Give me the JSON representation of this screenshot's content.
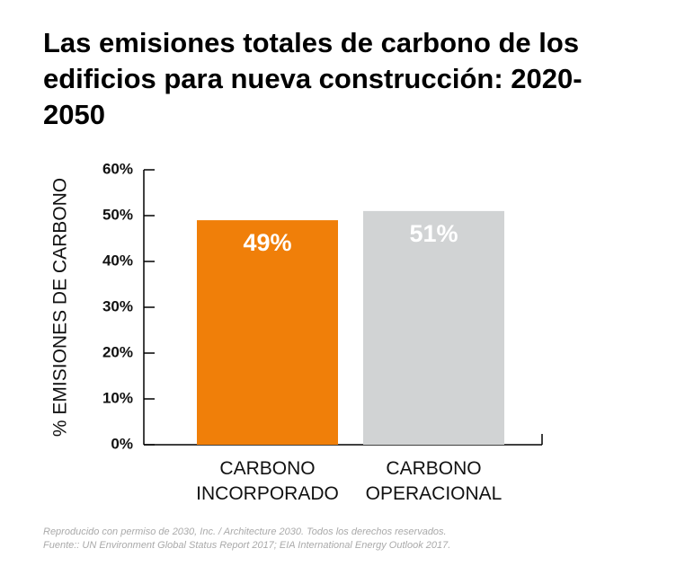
{
  "chart_data": {
    "type": "bar",
    "title": "Las emisiones totales de carbono de los edificios para nueva construcción: 2020-2050",
    "y_label": "% EMISIONES DE CARBONO",
    "categories": [
      "CARBONO INCORPORADO",
      "CARBONO OPERACIONAL"
    ],
    "values": [
      49,
      51
    ],
    "value_labels": [
      "49%",
      "51%"
    ],
    "colors": [
      "#f07f09",
      "#d1d3d4"
    ],
    "ylim": [
      0,
      60
    ],
    "yticks": [
      {
        "value": 0,
        "label": "0%"
      },
      {
        "value": 10,
        "label": "10%"
      },
      {
        "value": 20,
        "label": "20%"
      },
      {
        "value": 30,
        "label": "30%"
      },
      {
        "value": 40,
        "label": "40%"
      },
      {
        "value": 50,
        "label": "50%"
      },
      {
        "value": 60,
        "label": "60%"
      }
    ],
    "grid": false,
    "notes": [
      "Reproducido con permiso de 2030, Inc. / Architecture 2030. Todos los derechos reservados.",
      "Fuente:: UN Environment Global Status Report 2017; EIA International Energy Outlook 2017."
    ]
  }
}
